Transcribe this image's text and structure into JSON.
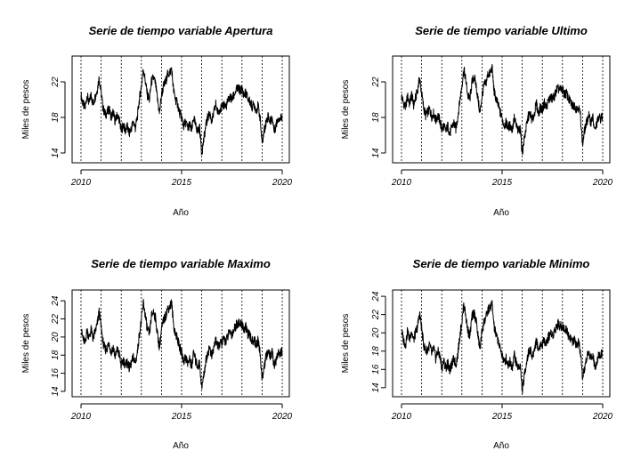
{
  "chart_data": [
    {
      "type": "line",
      "title": "Serie de tiempo variable Apertura",
      "xlabel": "Año",
      "ylabel": "Miles de pesos",
      "xlim": [
        2010,
        2020
      ],
      "ylim": [
        13.3,
        24.5
      ],
      "xticks": [
        2010,
        2015,
        2020
      ],
      "yticks": [
        14,
        18,
        22
      ],
      "vlines": [
        2010,
        2011,
        2012,
        2013,
        2014,
        2015,
        2016,
        2017,
        2018,
        2019,
        2020
      ],
      "series": [
        {
          "x": [
            2010.0,
            2010.1,
            2010.2,
            2010.3,
            2010.4,
            2010.5,
            2010.6,
            2010.7,
            2010.8,
            2010.9,
            2011.0,
            2011.1,
            2011.2,
            2011.3,
            2011.4,
            2011.5,
            2011.6,
            2011.7,
            2011.8,
            2011.9,
            2012.0,
            2012.1,
            2012.2,
            2012.3,
            2012.4,
            2012.5,
            2012.6,
            2012.7,
            2012.8,
            2012.9,
            2013.0,
            2013.1,
            2013.2,
            2013.3,
            2013.4,
            2013.5,
            2013.6,
            2013.7,
            2013.8,
            2013.9,
            2014.0,
            2014.1,
            2014.2,
            2014.3,
            2014.4,
            2014.5,
            2014.6,
            2014.7,
            2014.8,
            2014.9,
            2015.0,
            2015.1,
            2015.2,
            2015.3,
            2015.4,
            2015.5,
            2015.6,
            2015.7,
            2015.8,
            2015.9,
            2016.0,
            2016.1,
            2016.2,
            2016.3,
            2016.4,
            2016.5,
            2016.6,
            2016.7,
            2016.8,
            2016.9,
            2017.0,
            2017.1,
            2017.2,
            2017.3,
            2017.4,
            2017.5,
            2017.6,
            2017.7,
            2017.8,
            2017.9,
            2018.0,
            2018.1,
            2018.2,
            2018.3,
            2018.4,
            2018.5,
            2018.6,
            2018.7,
            2018.8,
            2018.9,
            2019.0,
            2019.1,
            2019.2,
            2019.3,
            2019.4,
            2019.5,
            2019.6,
            2019.7,
            2019.8,
            2019.9,
            2020.0
          ],
          "values": [
            20.5,
            19.5,
            19.0,
            20.5,
            19.6,
            20.5,
            19.5,
            20.3,
            21.0,
            22.5,
            20.8,
            19.0,
            18.3,
            18.5,
            19.0,
            18.0,
            18.6,
            17.5,
            18.3,
            17.8,
            16.5,
            17.2,
            16.5,
            17.0,
            16.2,
            16.8,
            17.5,
            16.8,
            18.0,
            20.0,
            21.5,
            23.5,
            22.0,
            20.5,
            20.0,
            22.0,
            22.5,
            21.8,
            20.0,
            18.5,
            20.5,
            21.5,
            22.0,
            22.8,
            23.0,
            23.5,
            21.0,
            20.0,
            19.5,
            18.5,
            18.0,
            17.0,
            17.5,
            16.8,
            17.2,
            16.5,
            18.0,
            17.0,
            16.5,
            16.8,
            14.0,
            15.5,
            17.0,
            18.0,
            18.5,
            17.5,
            18.5,
            19.5,
            18.5,
            19.0,
            19.0,
            19.5,
            19.2,
            19.8,
            20.3,
            20.0,
            20.5,
            21.0,
            21.3,
            21.0,
            21.2,
            20.5,
            20.8,
            20.0,
            19.8,
            19.2,
            19.5,
            18.8,
            19.3,
            18.0,
            15.0,
            16.5,
            17.5,
            18.2,
            17.5,
            18.0,
            16.5,
            17.2,
            18.0,
            17.8,
            18.2
          ]
        }
      ]
    },
    {
      "type": "line",
      "title": "Serie de tiempo variable Ultimo",
      "xlabel": "Año",
      "ylabel": "Miles de pesos",
      "xlim": [
        2010,
        2020
      ],
      "ylim": [
        13.3,
        24.5
      ],
      "xticks": [
        2010,
        2015,
        2020
      ],
      "yticks": [
        14,
        18,
        22
      ],
      "vlines": [
        2010,
        2011,
        2012,
        2013,
        2014,
        2015,
        2016,
        2017,
        2018,
        2019,
        2020
      ],
      "series": [
        {
          "x": [
            2010.0,
            2010.1,
            2010.2,
            2010.3,
            2010.4,
            2010.5,
            2010.6,
            2010.7,
            2010.8,
            2010.9,
            2011.0,
            2011.1,
            2011.2,
            2011.3,
            2011.4,
            2011.5,
            2011.6,
            2011.7,
            2011.8,
            2011.9,
            2012.0,
            2012.1,
            2012.2,
            2012.3,
            2012.4,
            2012.5,
            2012.6,
            2012.7,
            2012.8,
            2012.9,
            2013.0,
            2013.1,
            2013.2,
            2013.3,
            2013.4,
            2013.5,
            2013.6,
            2013.7,
            2013.8,
            2013.9,
            2014.0,
            2014.1,
            2014.2,
            2014.3,
            2014.4,
            2014.5,
            2014.6,
            2014.7,
            2014.8,
            2014.9,
            2015.0,
            2015.1,
            2015.2,
            2015.3,
            2015.4,
            2015.5,
            2015.6,
            2015.7,
            2015.8,
            2015.9,
            2016.0,
            2016.1,
            2016.2,
            2016.3,
            2016.4,
            2016.5,
            2016.6,
            2016.7,
            2016.8,
            2016.9,
            2017.0,
            2017.1,
            2017.2,
            2017.3,
            2017.4,
            2017.5,
            2017.6,
            2017.7,
            2017.8,
            2017.9,
            2018.0,
            2018.1,
            2018.2,
            2018.3,
            2018.4,
            2018.5,
            2018.6,
            2018.7,
            2018.8,
            2018.9,
            2019.0,
            2019.1,
            2019.2,
            2019.3,
            2019.4,
            2019.5,
            2019.6,
            2019.7,
            2019.8,
            2019.9,
            2020.0
          ],
          "values": [
            20.4,
            19.6,
            19.1,
            20.4,
            19.5,
            20.6,
            19.4,
            20.2,
            21.1,
            22.4,
            20.7,
            19.1,
            18.2,
            18.6,
            18.9,
            18.1,
            18.5,
            17.6,
            18.2,
            17.7,
            16.6,
            17.1,
            16.4,
            17.1,
            16.1,
            16.9,
            17.4,
            16.7,
            18.1,
            19.9,
            21.6,
            23.4,
            22.1,
            20.4,
            20.1,
            21.9,
            22.6,
            21.7,
            20.1,
            18.4,
            20.4,
            21.6,
            21.9,
            22.9,
            22.9,
            23.6,
            20.9,
            20.1,
            19.4,
            18.6,
            17.9,
            17.1,
            17.4,
            16.9,
            17.1,
            16.6,
            17.9,
            17.1,
            16.4,
            16.9,
            13.9,
            15.6,
            16.9,
            18.1,
            18.4,
            17.6,
            18.4,
            19.6,
            18.4,
            19.1,
            18.9,
            19.6,
            19.1,
            19.9,
            20.2,
            20.1,
            20.4,
            21.1,
            21.2,
            21.1,
            21.1,
            20.6,
            20.7,
            20.1,
            19.7,
            19.3,
            19.4,
            18.9,
            19.2,
            18.1,
            14.9,
            16.6,
            17.4,
            18.3,
            17.4,
            18.1,
            16.4,
            17.3,
            17.9,
            17.9,
            18.1
          ]
        }
      ]
    },
    {
      "type": "line",
      "title": "Serie de tiempo variable Maximo",
      "xlabel": "Año",
      "ylabel": "Miles de pesos",
      "xlim": [
        2010,
        2020
      ],
      "ylim": [
        13.8,
        24.8
      ],
      "xticks": [
        2010,
        2015,
        2020
      ],
      "yticks": [
        14,
        16,
        18,
        20,
        22,
        24
      ],
      "vlines": [
        2010,
        2011,
        2012,
        2013,
        2014,
        2015,
        2016,
        2017,
        2018,
        2019,
        2020
      ],
      "series": [
        {
          "x": [
            2010.0,
            2010.1,
            2010.2,
            2010.3,
            2010.4,
            2010.5,
            2010.6,
            2010.7,
            2010.8,
            2010.9,
            2011.0,
            2011.1,
            2011.2,
            2011.3,
            2011.4,
            2011.5,
            2011.6,
            2011.7,
            2011.8,
            2011.9,
            2012.0,
            2012.1,
            2012.2,
            2012.3,
            2012.4,
            2012.5,
            2012.6,
            2012.7,
            2012.8,
            2012.9,
            2013.0,
            2013.1,
            2013.2,
            2013.3,
            2013.4,
            2013.5,
            2013.6,
            2013.7,
            2013.8,
            2013.9,
            2014.0,
            2014.1,
            2014.2,
            2014.3,
            2014.4,
            2014.5,
            2014.6,
            2014.7,
            2014.8,
            2014.9,
            2015.0,
            2015.1,
            2015.2,
            2015.3,
            2015.4,
            2015.5,
            2015.6,
            2015.7,
            2015.8,
            2015.9,
            2016.0,
            2016.1,
            2016.2,
            2016.3,
            2016.4,
            2016.5,
            2016.6,
            2016.7,
            2016.8,
            2016.9,
            2017.0,
            2017.1,
            2017.2,
            2017.3,
            2017.4,
            2017.5,
            2017.6,
            2017.7,
            2017.8,
            2017.9,
            2018.0,
            2018.1,
            2018.2,
            2018.3,
            2018.4,
            2018.5,
            2018.6,
            2018.7,
            2018.8,
            2018.9,
            2019.0,
            2019.1,
            2019.2,
            2019.3,
            2019.4,
            2019.5,
            2019.6,
            2019.7,
            2019.8,
            2019.9,
            2020.0
          ],
          "values": [
            20.8,
            19.8,
            19.3,
            20.8,
            19.9,
            20.8,
            19.8,
            20.6,
            21.3,
            22.8,
            21.1,
            19.3,
            18.6,
            18.8,
            19.3,
            18.3,
            18.9,
            17.8,
            18.6,
            18.1,
            16.8,
            17.5,
            16.8,
            17.3,
            16.5,
            17.1,
            17.8,
            17.1,
            18.3,
            20.3,
            21.8,
            23.8,
            22.3,
            20.8,
            20.3,
            22.3,
            22.8,
            22.1,
            20.3,
            18.8,
            20.8,
            21.8,
            22.3,
            23.1,
            23.3,
            23.8,
            21.3,
            20.3,
            19.8,
            18.8,
            18.3,
            17.3,
            17.8,
            17.1,
            17.5,
            16.8,
            18.3,
            17.3,
            16.8,
            17.1,
            14.3,
            15.8,
            17.3,
            18.3,
            18.8,
            17.8,
            18.8,
            19.8,
            18.8,
            19.3,
            19.3,
            19.8,
            19.5,
            20.1,
            20.6,
            20.3,
            20.8,
            21.3,
            21.6,
            21.3,
            21.5,
            20.8,
            21.1,
            20.3,
            20.1,
            19.5,
            19.8,
            19.1,
            19.6,
            18.3,
            15.3,
            16.8,
            17.8,
            18.5,
            17.8,
            18.3,
            16.8,
            17.5,
            18.3,
            18.1,
            18.5
          ]
        }
      ]
    },
    {
      "type": "line",
      "title": "Serie de tiempo variable Minimo",
      "xlabel": "Año",
      "ylabel": "Miles de pesos",
      "xlim": [
        2010,
        2020
      ],
      "ylim": [
        13.4,
        24.3
      ],
      "xticks": [
        2010,
        2015,
        2020
      ],
      "yticks": [
        14,
        16,
        18,
        20,
        22,
        24
      ],
      "vlines": [
        2010,
        2011,
        2012,
        2013,
        2014,
        2015,
        2016,
        2017,
        2018,
        2019,
        2020
      ],
      "series": [
        {
          "x": [
            2010.0,
            2010.1,
            2010.2,
            2010.3,
            2010.4,
            2010.5,
            2010.6,
            2010.7,
            2010.8,
            2010.9,
            2011.0,
            2011.1,
            2011.2,
            2011.3,
            2011.4,
            2011.5,
            2011.6,
            2011.7,
            2011.8,
            2011.9,
            2012.0,
            2012.1,
            2012.2,
            2012.3,
            2012.4,
            2012.5,
            2012.6,
            2012.7,
            2012.8,
            2012.9,
            2013.0,
            2013.1,
            2013.2,
            2013.3,
            2013.4,
            2013.5,
            2013.6,
            2013.7,
            2013.8,
            2013.9,
            2014.0,
            2014.1,
            2014.2,
            2014.3,
            2014.4,
            2014.5,
            2014.6,
            2014.7,
            2014.8,
            2014.9,
            2015.0,
            2015.1,
            2015.2,
            2015.3,
            2015.4,
            2015.5,
            2015.6,
            2015.7,
            2015.8,
            2015.9,
            2016.0,
            2016.1,
            2016.2,
            2016.3,
            2016.4,
            2016.5,
            2016.6,
            2016.7,
            2016.8,
            2016.9,
            2017.0,
            2017.1,
            2017.2,
            2017.3,
            2017.4,
            2017.5,
            2017.6,
            2017.7,
            2017.8,
            2017.9,
            2018.0,
            2018.1,
            2018.2,
            2018.3,
            2018.4,
            2018.5,
            2018.6,
            2018.7,
            2018.8,
            2018.9,
            2019.0,
            2019.1,
            2019.2,
            2019.3,
            2019.4,
            2019.5,
            2019.6,
            2019.7,
            2019.8,
            2019.9,
            2020.0
          ],
          "values": [
            20.2,
            19.2,
            18.7,
            20.2,
            19.3,
            20.2,
            19.2,
            20.0,
            20.7,
            22.2,
            20.5,
            18.7,
            18.0,
            18.2,
            18.7,
            17.7,
            18.3,
            17.2,
            18.0,
            17.5,
            16.2,
            16.9,
            16.2,
            16.7,
            15.9,
            16.5,
            17.2,
            16.5,
            17.7,
            19.7,
            21.2,
            23.2,
            21.7,
            20.2,
            19.7,
            21.7,
            22.2,
            21.5,
            19.7,
            18.2,
            20.2,
            21.2,
            21.7,
            22.5,
            22.7,
            23.2,
            20.7,
            19.7,
            19.2,
            18.2,
            17.7,
            16.7,
            17.2,
            16.5,
            16.9,
            16.2,
            17.7,
            16.7,
            16.2,
            16.5,
            13.7,
            15.2,
            16.7,
            17.7,
            18.2,
            17.2,
            18.2,
            19.2,
            18.2,
            18.7,
            18.7,
            19.2,
            18.9,
            19.5,
            20.0,
            19.7,
            20.2,
            20.7,
            21.0,
            20.7,
            20.9,
            20.2,
            20.5,
            19.7,
            19.5,
            18.9,
            19.2,
            18.5,
            19.0,
            17.7,
            14.7,
            16.2,
            17.2,
            17.9,
            17.2,
            17.7,
            16.2,
            16.9,
            17.7,
            17.5,
            17.9
          ]
        }
      ]
    }
  ]
}
